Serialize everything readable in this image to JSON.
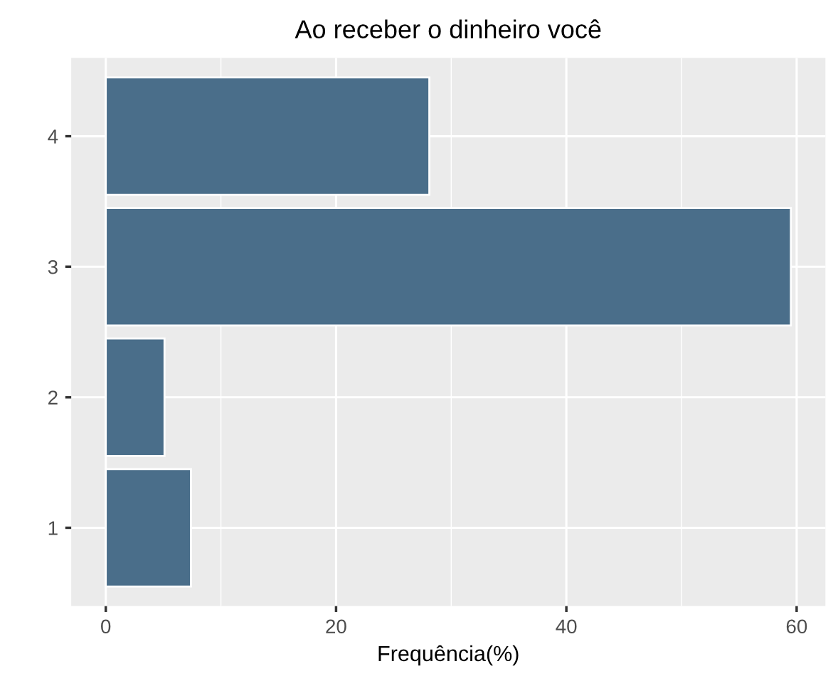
{
  "chart_data": {
    "type": "bar",
    "orientation": "horizontal",
    "title": "Ao receber o dinheiro você",
    "xlabel": "Frequência(%)",
    "categories": [
      "4",
      "3",
      "2",
      "1"
    ],
    "values": [
      28.1,
      59.5,
      5.1,
      7.4
    ],
    "color": "#4a6e8a",
    "xlim": [
      -3,
      62.5
    ],
    "xticks": [
      0,
      20,
      40,
      60
    ],
    "grid": true
  }
}
